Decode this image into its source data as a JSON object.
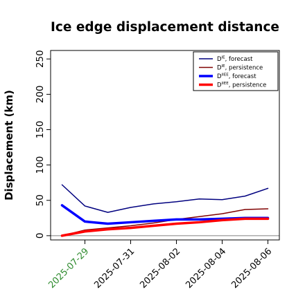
{
  "chart_data": {
    "type": "line",
    "title": "Ice edge displacement distance",
    "ylabel": "Displacement (km)",
    "xlabel": "",
    "ylim": [
      -6,
      262
    ],
    "y_ticks": [
      0,
      50,
      100,
      150,
      200,
      250
    ],
    "x_range": [
      "2025-07-27T12:00",
      "2025-08-06T12:00"
    ],
    "x_ticks": [
      {
        "date": "2025-07-29",
        "label": "2025-07-29",
        "color": "#2e8b2e"
      },
      {
        "date": "2025-07-31",
        "label": "2025-07-31",
        "color": "#000000"
      },
      {
        "date": "2025-08-02",
        "label": "2025-08-02",
        "color": "#000000"
      },
      {
        "date": "2025-08-04",
        "label": "2025-08-04",
        "color": "#000000"
      },
      {
        "date": "2025-08-06",
        "label": "2025-08-06",
        "color": "#000000"
      }
    ],
    "zero_line": true,
    "grid": false,
    "legend_position": "top-right",
    "x": [
      "2025-07-28",
      "2025-07-29",
      "2025-07-30",
      "2025-07-31",
      "2025-08-01",
      "2025-08-02",
      "2025-08-03",
      "2025-08-04",
      "2025-08-05",
      "2025-08-06"
    ],
    "series": [
      {
        "legend_main": "D",
        "legend_sup": "IE",
        "legend_rest": ", forecast",
        "color": "#00007f",
        "width": 1.5,
        "values": [
          72,
          42,
          33,
          40,
          45,
          48,
          52,
          51,
          56,
          67
        ]
      },
      {
        "legend_main": "D",
        "legend_sup": "IE",
        "legend_rest": ", persistence",
        "color": "#7f0000",
        "width": 1.5,
        "values": [
          0,
          8,
          11,
          14,
          18,
          23,
          27,
          31,
          37,
          38
        ]
      },
      {
        "legend_main": "D",
        "legend_sup": "IIEE",
        "legend_rest": ", forecast",
        "color": "#0000ff",
        "width": 3.5,
        "values": [
          43,
          20,
          17,
          19,
          21,
          23,
          23,
          24,
          25,
          25
        ]
      },
      {
        "legend_main": "D",
        "legend_sup": "IIEE",
        "legend_rest": ", persistence",
        "color": "#ff0000",
        "width": 3.5,
        "values": [
          0,
          6,
          9,
          11,
          14,
          17,
          19,
          22,
          24,
          24
        ]
      }
    ]
  }
}
